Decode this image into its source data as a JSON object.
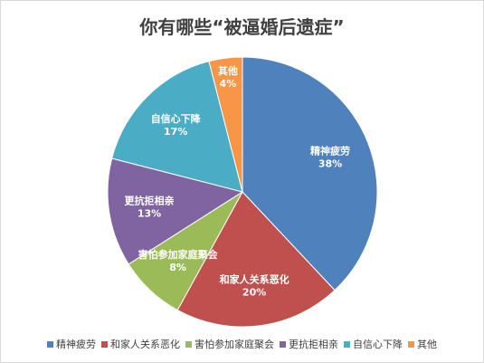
{
  "chart_data": {
    "type": "pie",
    "title": "你有哪些“被逼婚后遗症”",
    "slices": [
      {
        "label": "精神疲劳",
        "value": 38,
        "value_label": "38%",
        "color": "#4f81bd"
      },
      {
        "label": "和家人关系恶化",
        "value": 20,
        "value_label": "20%",
        "color": "#c0504d"
      },
      {
        "label": "害怕参加家庭聚会",
        "value": 8,
        "value_label": "8%",
        "color": "#9bbb59"
      },
      {
        "label": "更抗拒相亲",
        "value": 13,
        "value_label": "13%",
        "color": "#8064a2"
      },
      {
        "label": "自信心下降",
        "value": 17,
        "value_label": "17%",
        "color": "#4bacc6"
      },
      {
        "label": "其他",
        "value": 4,
        "value_label": "4%",
        "color": "#f79646"
      }
    ],
    "legend_position": "bottom",
    "data_labels": "inside"
  }
}
